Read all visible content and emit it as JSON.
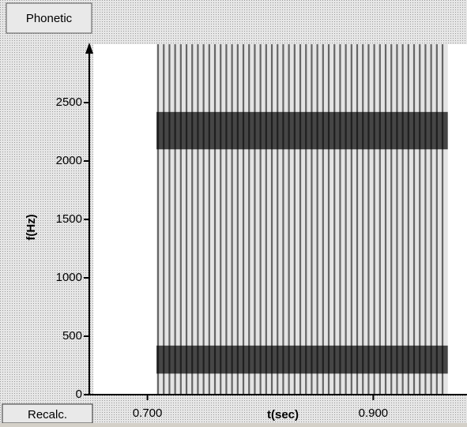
{
  "ui": {
    "tab": "Phonetic",
    "button": "Recalc."
  },
  "chart_data": {
    "type": "spectrogram",
    "xlabel": "t(sec)",
    "ylabel": "f(Hz)",
    "xlim": [
      0.652,
      0.983
    ],
    "xticks": [
      {
        "value": 0.7,
        "label": "0.700"
      },
      {
        "value": 0.9,
        "label": "0.900"
      }
    ],
    "ylim": [
      0,
      3000
    ],
    "yticks": [
      0,
      500,
      1000,
      1500,
      2000,
      2500
    ],
    "voicing": {
      "start": 0.708,
      "end": 0.966
    },
    "formants": [
      {
        "low": 180,
        "high": 420
      },
      {
        "low": 2100,
        "high": 2420
      }
    ],
    "color": "#111111"
  }
}
